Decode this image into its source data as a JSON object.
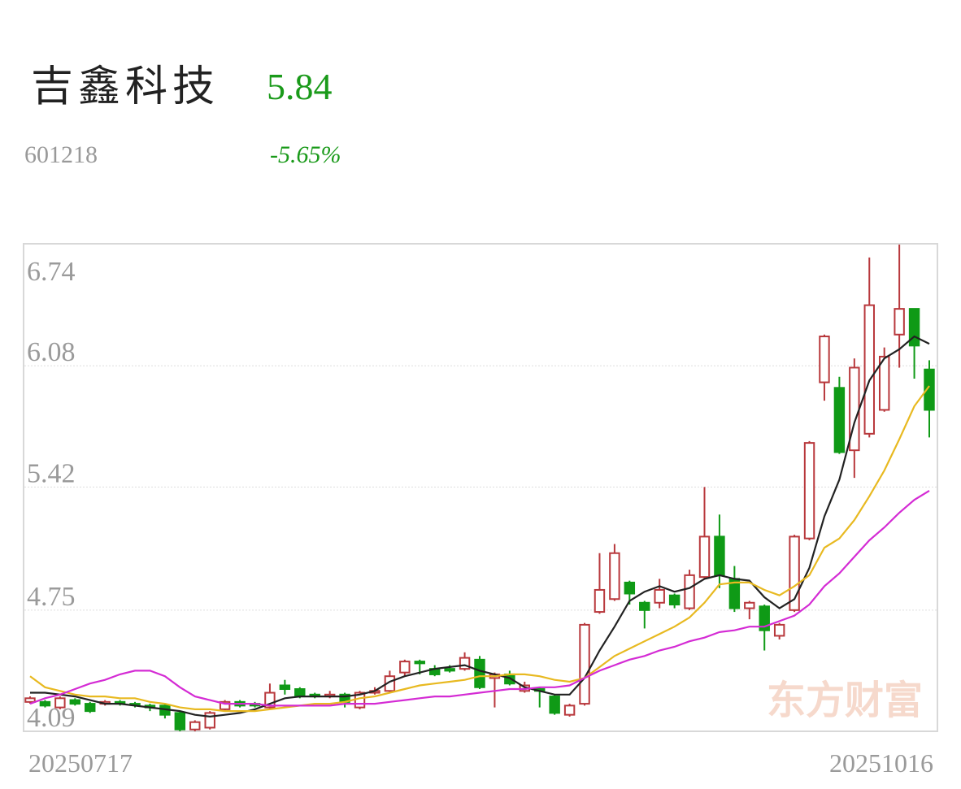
{
  "header": {
    "title": "吉鑫科技",
    "price": "5.84",
    "code": "601218",
    "change": "-5.65%",
    "watermark": "东方财富"
  },
  "chart_data": {
    "type": "candlestick",
    "categories": [
      "20250717",
      null,
      null,
      null,
      null,
      null,
      null,
      null,
      null,
      null,
      null,
      null,
      null,
      null,
      null,
      null,
      null,
      null,
      null,
      null,
      null,
      null,
      null,
      null,
      null,
      null,
      null,
      null,
      null,
      null,
      null,
      null,
      null,
      null,
      null,
      null,
      null,
      null,
      null,
      null,
      null,
      null,
      null,
      null,
      null,
      null,
      null,
      null,
      null,
      null,
      null,
      null,
      null,
      null,
      null,
      null,
      null,
      null,
      null,
      null,
      "20251016"
    ],
    "open": [
      4.25,
      4.25,
      4.22,
      4.26,
      4.24,
      4.24,
      4.25,
      4.24,
      4.23,
      4.23,
      4.19,
      4.1,
      4.11,
      4.21,
      4.25,
      4.24,
      4.22,
      4.34,
      4.32,
      4.29,
      4.28,
      4.29,
      4.22,
      4.3,
      4.31,
      4.41,
      4.47,
      4.43,
      4.43,
      4.43,
      4.48,
      4.38,
      4.4,
      4.31,
      4.32,
      4.28,
      4.18,
      4.24,
      4.74,
      4.81,
      4.9,
      4.79,
      4.79,
      4.83,
      4.76,
      4.93,
      5.15,
      4.92,
      4.76,
      4.77,
      4.61,
      4.75,
      5.14,
      5.99,
      5.96,
      5.62,
      5.71,
      5.84,
      6.25,
      6.39,
      6.06
    ],
    "high": [
      4.28,
      4.26,
      4.28,
      4.27,
      4.25,
      4.26,
      4.26,
      4.25,
      4.24,
      4.24,
      4.2,
      4.15,
      4.2,
      4.26,
      4.26,
      4.25,
      4.35,
      4.37,
      4.33,
      4.3,
      4.31,
      4.3,
      4.31,
      4.33,
      4.42,
      4.48,
      4.48,
      4.45,
      4.45,
      4.52,
      4.5,
      4.41,
      4.42,
      4.36,
      4.33,
      4.29,
      4.24,
      4.68,
      5.06,
      5.11,
      4.91,
      4.8,
      4.92,
      4.84,
      4.97,
      5.42,
      5.27,
      4.99,
      4.8,
      4.78,
      4.68,
      5.16,
      5.67,
      6.25,
      6.02,
      6.12,
      6.67,
      6.18,
      6.74,
      6.39,
      6.11
    ],
    "low": [
      4.24,
      4.22,
      4.21,
      4.23,
      4.19,
      4.23,
      4.23,
      4.22,
      4.2,
      4.16,
      4.09,
      4.09,
      4.1,
      4.2,
      4.22,
      4.22,
      4.21,
      4.29,
      4.27,
      4.27,
      4.27,
      4.22,
      4.21,
      4.29,
      4.3,
      4.39,
      4.4,
      4.39,
      4.41,
      4.42,
      4.32,
      4.22,
      4.34,
      4.3,
      4.22,
      4.18,
      4.17,
      4.23,
      4.73,
      4.8,
      4.78,
      4.65,
      4.76,
      4.76,
      4.75,
      4.92,
      4.87,
      4.74,
      4.7,
      4.53,
      4.59,
      4.74,
      5.13,
      5.89,
      5.6,
      5.47,
      5.69,
      5.83,
      6.07,
      6.01,
      5.69
    ],
    "close": [
      4.27,
      4.23,
      4.27,
      4.24,
      4.2,
      4.25,
      4.24,
      4.235,
      4.22,
      4.18,
      4.1,
      4.14,
      4.19,
      4.25,
      4.23,
      4.23,
      4.3,
      4.32,
      4.28,
      4.28,
      4.29,
      4.25,
      4.3,
      4.31,
      4.39,
      4.47,
      4.46,
      4.4,
      4.42,
      4.49,
      4.33,
      4.4,
      4.35,
      4.34,
      4.31,
      4.19,
      4.23,
      4.67,
      4.86,
      5.06,
      4.84,
      4.75,
      4.86,
      4.78,
      4.94,
      5.15,
      4.94,
      4.76,
      4.79,
      4.64,
      4.67,
      5.15,
      5.66,
      6.24,
      5.61,
      6.07,
      6.41,
      6.13,
      6.39,
      6.19,
      5.84
    ],
    "up_color": "#b8383c",
    "down_color": "#0f9a16",
    "lines": [
      {
        "color": "#222222",
        "values": [
          4.3,
          4.3,
          4.29,
          4.28,
          4.26,
          4.24,
          4.24,
          4.23,
          4.22,
          4.21,
          4.2,
          4.18,
          4.17,
          4.18,
          4.19,
          4.21,
          4.24,
          4.27,
          4.28,
          4.28,
          4.28,
          4.28,
          4.29,
          4.31,
          4.36,
          4.39,
          4.41,
          4.43,
          4.44,
          4.45,
          4.42,
          4.4,
          4.38,
          4.33,
          4.31,
          4.29,
          4.29,
          4.38,
          4.53,
          4.66,
          4.8,
          4.85,
          4.88,
          4.85,
          4.87,
          4.92,
          4.94,
          4.92,
          4.91,
          4.82,
          4.76,
          4.81,
          4.98,
          5.26,
          5.46,
          5.77,
          6.0,
          6.12,
          6.17,
          6.24,
          6.2
        ]
      },
      {
        "color": "#e8b920",
        "values": [
          4.39,
          4.33,
          4.31,
          4.29,
          4.28,
          4.28,
          4.27,
          4.27,
          4.25,
          4.24,
          4.22,
          4.21,
          4.21,
          4.2,
          4.2,
          4.2,
          4.21,
          4.22,
          4.23,
          4.24,
          4.24,
          4.25,
          4.27,
          4.28,
          4.3,
          4.32,
          4.34,
          4.35,
          4.36,
          4.37,
          4.39,
          4.39,
          4.4,
          4.4,
          4.39,
          4.37,
          4.36,
          4.38,
          4.44,
          4.5,
          4.54,
          4.58,
          4.62,
          4.66,
          4.71,
          4.79,
          4.89,
          4.9,
          4.9,
          4.86,
          4.83,
          4.88,
          4.94,
          5.09,
          5.14,
          5.24,
          5.37,
          5.51,
          5.68,
          5.86,
          5.97
        ]
      },
      {
        "color": "#d42bd4",
        "values": [
          4.24,
          4.27,
          4.29,
          4.32,
          4.35,
          4.37,
          4.4,
          4.42,
          4.42,
          4.39,
          4.33,
          4.28,
          4.26,
          4.24,
          4.24,
          4.24,
          4.23,
          4.23,
          4.23,
          4.23,
          4.23,
          4.24,
          4.24,
          4.24,
          4.25,
          4.26,
          4.27,
          4.28,
          4.28,
          4.29,
          4.3,
          4.31,
          4.32,
          4.32,
          4.33,
          4.33,
          4.34,
          4.38,
          4.42,
          4.45,
          4.48,
          4.5,
          4.53,
          4.55,
          4.58,
          4.6,
          4.63,
          4.64,
          4.66,
          4.66,
          4.69,
          4.72,
          4.78,
          4.88,
          4.95,
          5.04,
          5.13,
          5.2,
          5.28,
          5.35,
          5.4
        ]
      }
    ],
    "ylim": [
      4.09,
      6.74
    ],
    "yticks": [
      6.74,
      6.08,
      5.42,
      4.75,
      4.09
    ],
    "grid": true
  }
}
